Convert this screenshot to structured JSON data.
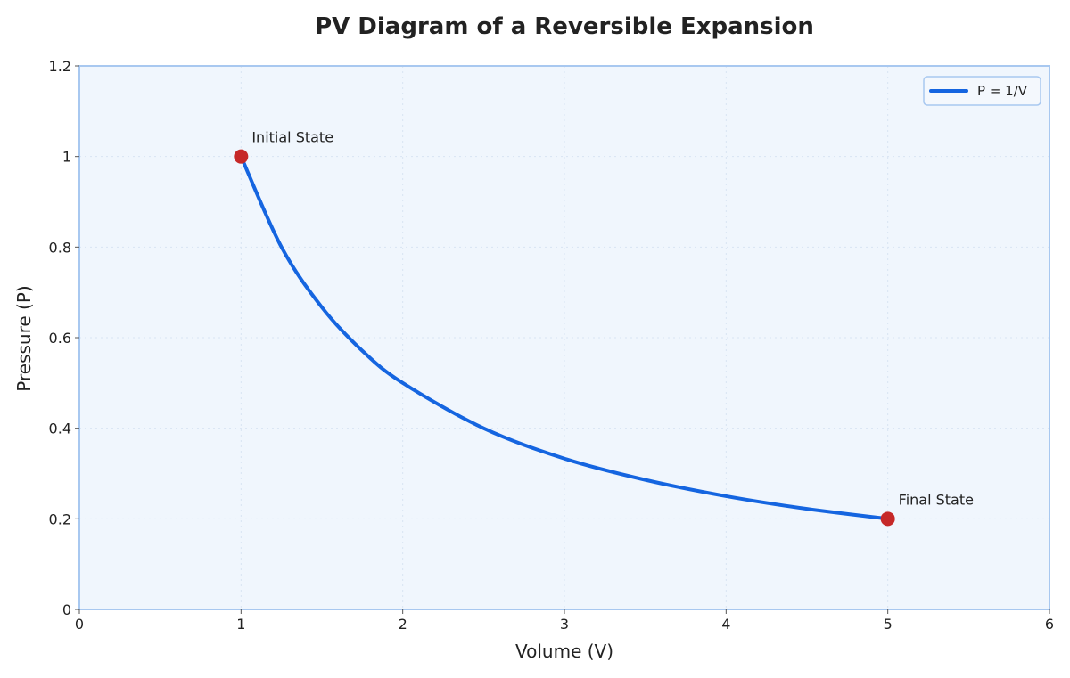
{
  "chart_data": {
    "type": "line",
    "title": "PV Diagram of a Reversible Expansion",
    "xlabel": "Volume (V)",
    "ylabel": "Pressure (P)",
    "xlim": [
      0,
      6
    ],
    "ylim": [
      0,
      1.2
    ],
    "xticks": [
      "0",
      "1",
      "2",
      "3",
      "4",
      "5",
      "6"
    ],
    "yticks": [
      "0",
      "0.2",
      "0.4",
      "0.6",
      "0.8",
      "1",
      "1.2"
    ],
    "grid": true,
    "legend_position": "top-right",
    "series": [
      {
        "name": "P = 1/V",
        "color": "#1565e0",
        "x": [
          1,
          1.25,
          1.5,
          1.75,
          2,
          2.5,
          3,
          3.5,
          4,
          4.5,
          5
        ],
        "y": [
          1,
          0.8,
          0.667,
          0.571,
          0.5,
          0.4,
          0.333,
          0.286,
          0.25,
          0.222,
          0.2
        ]
      }
    ],
    "points": [
      {
        "x": 1,
        "y": 1,
        "label": "Initial State",
        "color": "#c62828"
      },
      {
        "x": 5,
        "y": 0.2,
        "label": "Final State",
        "color": "#c62828"
      }
    ],
    "colors": {
      "plot_background": "#f0f6fd",
      "frame": "#a8c8f0",
      "grid": "#d8e4f2"
    }
  }
}
